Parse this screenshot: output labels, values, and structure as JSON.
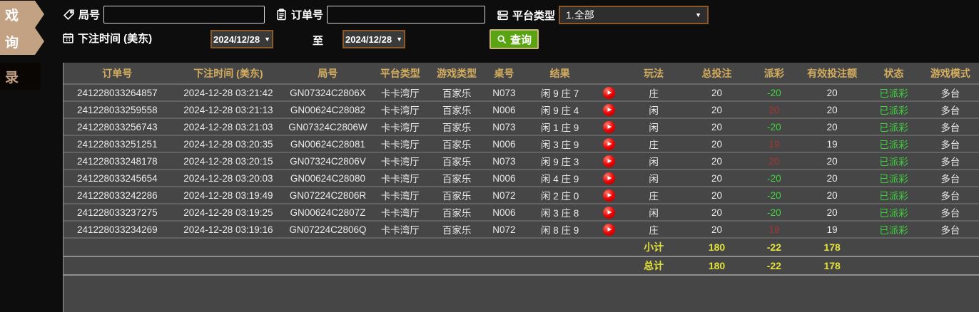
{
  "colors": {
    "sidebar_tan": "#c3a284",
    "header_gold": "#d4ad5f",
    "summary_yellow": "#e3e23c",
    "win_red": "#a83434",
    "loss_green": "#3fd63f",
    "status_green": "#3ed03e",
    "button_green": "#5aa312",
    "border_brown": "#8a5a28"
  },
  "icons": {
    "round": "tag-icon",
    "order": "clipboard-icon",
    "platform": "list-icon",
    "time": "calendar-icon",
    "search": "magnifier-icon",
    "replay": "play-icon",
    "dropdown_glyph": "▼"
  },
  "sidebar": {
    "items": [
      {
        "label": "戏",
        "style": "tan"
      },
      {
        "label": "询",
        "style": "tan"
      },
      {
        "label": "录",
        "style": "dark"
      }
    ]
  },
  "filters": {
    "round_label": "局号",
    "round_value": "",
    "order_label": "订单号",
    "order_value": "",
    "platform_label": "平台类型",
    "platform_value": "1.全部",
    "time_label": "下注时间 (美东)",
    "date_from": "2024/12/28",
    "to_label": "至",
    "date_to": "2024/12/28",
    "search_label": "查询"
  },
  "table": {
    "columns": [
      "订单号",
      "下注时间 (美东)",
      "局号",
      "平台类型",
      "游戏类型",
      "桌号",
      "结果",
      "",
      "玩法",
      "总投注",
      "派彩",
      "有效投注额",
      "状态",
      "游戏模式"
    ],
    "rows": [
      {
        "order": "241228033264857",
        "time": "2024-12-28 03:21:42",
        "round": "GN07324C2806X",
        "platform": "卡卡湾厅",
        "game_type": "百家乐",
        "table_no": "N073",
        "result": "闲 9 庄 7",
        "play": "庄",
        "total_bet": "20",
        "payout": "-20",
        "payout_color": "green",
        "valid_bet": "20",
        "status": "已派彩",
        "mode": "多台"
      },
      {
        "order": "241228033259558",
        "time": "2024-12-28 03:21:13",
        "round": "GN00624C28082",
        "platform": "卡卡湾厅",
        "game_type": "百家乐",
        "table_no": "N006",
        "result": "闲 9 庄 4",
        "play": "闲",
        "total_bet": "20",
        "payout": "20",
        "payout_color": "red",
        "valid_bet": "20",
        "status": "已派彩",
        "mode": "多台"
      },
      {
        "order": "241228033256743",
        "time": "2024-12-28 03:21:03",
        "round": "GN07324C2806W",
        "platform": "卡卡湾厅",
        "game_type": "百家乐",
        "table_no": "N073",
        "result": "闲 1 庄 9",
        "play": "闲",
        "total_bet": "20",
        "payout": "-20",
        "payout_color": "green",
        "valid_bet": "20",
        "status": "已派彩",
        "mode": "多台"
      },
      {
        "order": "241228033251251",
        "time": "2024-12-28 03:20:35",
        "round": "GN00624C28081",
        "platform": "卡卡湾厅",
        "game_type": "百家乐",
        "table_no": "N006",
        "result": "闲 3 庄 9",
        "play": "庄",
        "total_bet": "20",
        "payout": "19",
        "payout_color": "red",
        "valid_bet": "19",
        "status": "已派彩",
        "mode": "多台"
      },
      {
        "order": "241228033248178",
        "time": "2024-12-28 03:20:15",
        "round": "GN07324C2806V",
        "platform": "卡卡湾厅",
        "game_type": "百家乐",
        "table_no": "N073",
        "result": "闲 9 庄 3",
        "play": "闲",
        "total_bet": "20",
        "payout": "20",
        "payout_color": "red",
        "valid_bet": "20",
        "status": "已派彩",
        "mode": "多台"
      },
      {
        "order": "241228033245654",
        "time": "2024-12-28 03:20:03",
        "round": "GN00624C28080",
        "platform": "卡卡湾厅",
        "game_type": "百家乐",
        "table_no": "N006",
        "result": "闲 4 庄 9",
        "play": "闲",
        "total_bet": "20",
        "payout": "-20",
        "payout_color": "green",
        "valid_bet": "20",
        "status": "已派彩",
        "mode": "多台"
      },
      {
        "order": "241228033242286",
        "time": "2024-12-28 03:19:49",
        "round": "GN07224C2806R",
        "platform": "卡卡湾厅",
        "game_type": "百家乐",
        "table_no": "N072",
        "result": "闲 2 庄 0",
        "play": "庄",
        "total_bet": "20",
        "payout": "-20",
        "payout_color": "green",
        "valid_bet": "20",
        "status": "已派彩",
        "mode": "多台"
      },
      {
        "order": "241228033237275",
        "time": "2024-12-28 03:19:25",
        "round": "GN00624C2807Z",
        "platform": "卡卡湾厅",
        "game_type": "百家乐",
        "table_no": "N006",
        "result": "闲 3 庄 8",
        "play": "闲",
        "total_bet": "20",
        "payout": "-20",
        "payout_color": "green",
        "valid_bet": "20",
        "status": "已派彩",
        "mode": "多台"
      },
      {
        "order": "241228033234269",
        "time": "2024-12-28 03:19:16",
        "round": "GN07224C2806Q",
        "platform": "卡卡湾厅",
        "game_type": "百家乐",
        "table_no": "N072",
        "result": "闲 8 庄 9",
        "play": "庄",
        "total_bet": "20",
        "payout": "19",
        "payout_color": "red",
        "valid_bet": "19",
        "status": "已派彩",
        "mode": "多台"
      }
    ],
    "subtotal": {
      "label": "小计",
      "total_bet": "180",
      "payout": "-22",
      "valid_bet": "178"
    },
    "grand_total": {
      "label": "总计",
      "total_bet": "180",
      "payout": "-22",
      "valid_bet": "178"
    }
  }
}
